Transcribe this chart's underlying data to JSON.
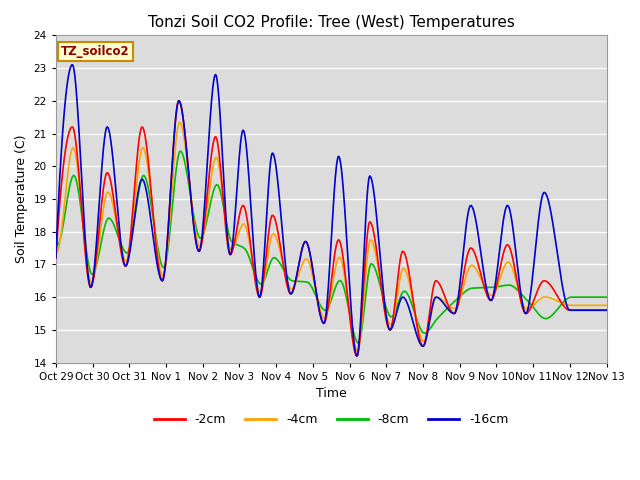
{
  "title": "Tonzi Soil CO2 Profile: Tree (West) Temperatures",
  "ylabel": "Soil Temperature (C)",
  "xlabel": "Time",
  "ylim": [
    14.0,
    24.0
  ],
  "yticks": [
    14.0,
    15.0,
    16.0,
    17.0,
    18.0,
    19.0,
    20.0,
    21.0,
    22.0,
    23.0,
    24.0
  ],
  "bg_color": "#dcdcdc",
  "fig_color": "#ffffff",
  "label_box": "TZ_soilco2",
  "label_box_fg": "#8b0000",
  "label_box_bg": "#ffffcc",
  "label_box_edge": "#cc8800",
  "lines": [
    {
      "label": "-2cm",
      "color": "#ff0000",
      "lw": 1.2
    },
    {
      "label": "-4cm",
      "color": "#ffa500",
      "lw": 1.2
    },
    {
      "label": "-8cm",
      "color": "#00bb00",
      "lw": 1.2
    },
    {
      "label": "-16cm",
      "color": "#0000cc",
      "lw": 1.2
    }
  ],
  "xtick_labels": [
    "Oct 29",
    "Oct 30",
    "Oct 31",
    "Nov 1",
    "Nov 2",
    "Nov 3",
    "Nov 4",
    "Nov 5",
    "Nov 6",
    "Nov 7",
    "Nov 8",
    "Nov 9",
    "Nov 10",
    "Nov 11",
    "Nov 12",
    "Nov 13"
  ],
  "n_days": 15,
  "pts_per_day": 96,
  "peak_times": [
    0.45,
    1.4,
    2.35,
    3.35,
    4.35,
    5.1,
    5.9,
    6.8,
    7.7,
    8.55,
    9.45,
    10.35,
    11.3,
    12.3,
    13.3
  ],
  "peak_vals_base": [
    21.2,
    19.8,
    21.2,
    22.0,
    20.9,
    18.8,
    18.5,
    17.7,
    17.75,
    18.3,
    17.4,
    16.5,
    17.5,
    17.6,
    16.5
  ],
  "trough_times": [
    0.0,
    0.95,
    1.9,
    2.9,
    3.9,
    4.75,
    5.55,
    6.4,
    7.3,
    8.2,
    9.1,
    10.0,
    10.85,
    11.85,
    12.8,
    14.0
  ],
  "trough_vals": [
    17.2,
    16.3,
    16.95,
    16.5,
    17.4,
    17.3,
    16.0,
    16.1,
    15.2,
    14.2,
    15.0,
    14.5,
    15.5,
    15.9,
    15.5,
    15.6
  ]
}
